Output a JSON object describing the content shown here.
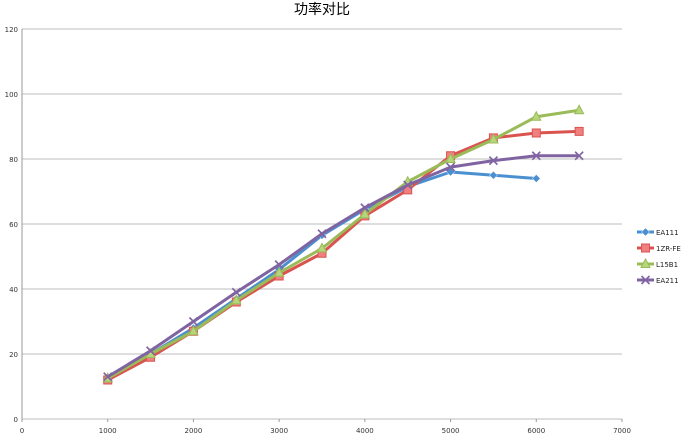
{
  "chart_data": {
    "type": "line",
    "title": "功率对比",
    "xlabel": "",
    "ylabel": "",
    "xlim": [
      0,
      7000
    ],
    "ylim": [
      0,
      120
    ],
    "xticks": [
      0,
      1000,
      2000,
      3000,
      4000,
      5000,
      6000,
      7000
    ],
    "yticks": [
      0,
      20,
      40,
      60,
      80,
      100,
      120
    ],
    "grid": "horizontal",
    "legend_position": "right",
    "x": [
      1000,
      1500,
      2000,
      2500,
      3000,
      3500,
      4000,
      4500,
      5000,
      5500,
      6000,
      6500
    ],
    "series": [
      {
        "name": "EA111",
        "color": "#4a90d0",
        "marker": "diamond",
        "values": [
          12.5,
          20,
          28,
          37,
          46,
          56.5,
          64.5,
          71.5,
          76,
          75,
          74,
          null
        ]
      },
      {
        "name": "1ZR-FE",
        "color": "#d9534f",
        "marker": "square",
        "values": [
          12,
          19,
          27,
          36,
          44,
          51,
          62.5,
          70.5,
          81,
          86.5,
          88,
          88.5
        ]
      },
      {
        "name": "L15B1",
        "color": "#9bbb59",
        "marker": "triangle",
        "values": [
          12.5,
          20,
          27,
          36.5,
          45,
          52.5,
          63,
          73,
          80,
          86,
          93,
          95
        ]
      },
      {
        "name": "EA211",
        "color": "#8064a2",
        "marker": "x",
        "values": [
          13,
          21,
          30,
          39,
          47.5,
          57,
          65,
          72,
          77.5,
          79.5,
          81,
          81
        ]
      }
    ]
  }
}
